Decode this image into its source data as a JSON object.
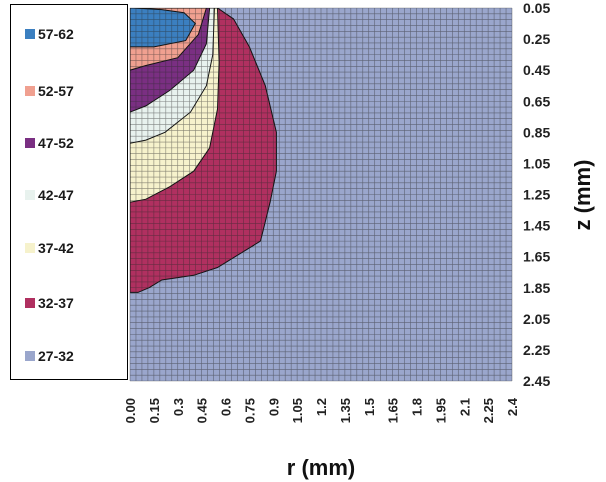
{
  "chart_data": {
    "type": "heatmap",
    "xlabel": "r (mm)",
    "ylabel": "z (mm)",
    "x_ticks": [
      "0.00",
      "0.15",
      "0.3",
      "0.45",
      "0.6",
      "0.75",
      "0.9",
      "1.05",
      "1.2",
      "1.35",
      "1.5",
      "1.65",
      "1.8",
      "1.95",
      "2.1",
      "2.25",
      "2.4"
    ],
    "y_ticks": [
      "0.05",
      "0.25",
      "0.45",
      "0.65",
      "0.85",
      "1.05",
      "1.25",
      "1.45",
      "1.65",
      "1.85",
      "2.05",
      "2.25",
      "2.45"
    ],
    "xlim": [
      0,
      2.4
    ],
    "ylim": [
      0.05,
      2.45
    ],
    "y_inverted": true,
    "grid": true,
    "legend_position": "left",
    "levels": [
      {
        "label": "57-62",
        "color": "#3b7fc0"
      },
      {
        "label": "52-57",
        "color": "#f0a090"
      },
      {
        "label": "47-52",
        "color": "#7a2f82"
      },
      {
        "label": "42-47",
        "color": "#e8f2ee"
      },
      {
        "label": "37-42",
        "color": "#f6f2cc"
      },
      {
        "label": "32-37",
        "color": "#b03060"
      },
      {
        "label": "27-32",
        "color": "#9aa6cc"
      }
    ],
    "contours": [
      {
        "level": "32-37",
        "boundary": [
          [
            0.55,
            0.05
          ],
          [
            0.65,
            0.12
          ],
          [
            0.75,
            0.3
          ],
          [
            0.85,
            0.55
          ],
          [
            0.92,
            0.85
          ],
          [
            0.92,
            1.1
          ],
          [
            0.88,
            1.3
          ],
          [
            0.82,
            1.55
          ],
          [
            0.55,
            1.72
          ],
          [
            0.4,
            1.77
          ],
          [
            0.2,
            1.8
          ],
          [
            0.12,
            1.85
          ],
          [
            0.05,
            1.88
          ],
          [
            0,
            1.88
          ]
        ]
      },
      {
        "level": "37-42",
        "boundary": [
          [
            0.55,
            0.05
          ],
          [
            0.56,
            0.4
          ],
          [
            0.55,
            0.7
          ],
          [
            0.5,
            0.95
          ],
          [
            0.4,
            1.1
          ],
          [
            0.25,
            1.2
          ],
          [
            0.1,
            1.28
          ],
          [
            0,
            1.3
          ]
        ]
      },
      {
        "level": "42-47",
        "boundary": [
          [
            0.53,
            0.05
          ],
          [
            0.52,
            0.35
          ],
          [
            0.48,
            0.55
          ],
          [
            0.38,
            0.72
          ],
          [
            0.22,
            0.85
          ],
          [
            0.1,
            0.9
          ],
          [
            0,
            0.92
          ]
        ]
      },
      {
        "level": "47-52",
        "boundary": [
          [
            0.5,
            0.05
          ],
          [
            0.48,
            0.28
          ],
          [
            0.4,
            0.45
          ],
          [
            0.25,
            0.58
          ],
          [
            0.1,
            0.68
          ],
          [
            0,
            0.72
          ]
        ]
      },
      {
        "level": "52-57",
        "boundary": [
          [
            0.48,
            0.05
          ],
          [
            0.43,
            0.22
          ],
          [
            0.3,
            0.37
          ],
          [
            0.1,
            0.42
          ],
          [
            0,
            0.45
          ]
        ]
      },
      {
        "level": "57-62",
        "boundary": [
          [
            0.02,
            0.05
          ],
          [
            0.2,
            0.06
          ],
          [
            0.34,
            0.08
          ],
          [
            0.41,
            0.15
          ],
          [
            0.35,
            0.26
          ],
          [
            0.15,
            0.3
          ],
          [
            0,
            0.3
          ]
        ]
      }
    ],
    "background_level": "27-32"
  }
}
